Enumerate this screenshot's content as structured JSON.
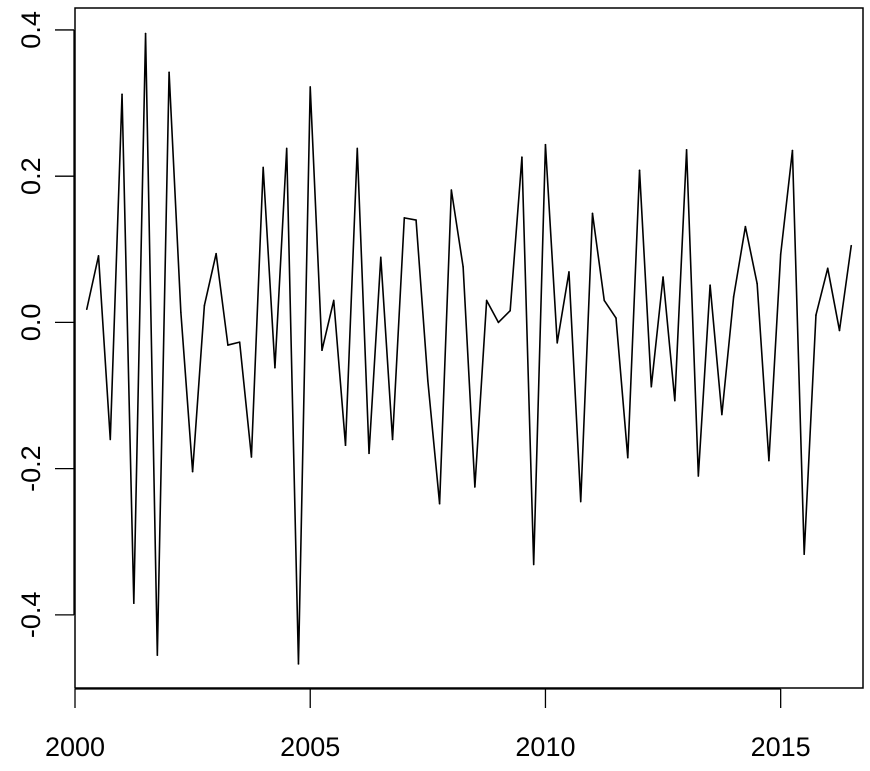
{
  "chart_data": {
    "type": "line",
    "title": "",
    "xlabel": "",
    "ylabel": "",
    "xlim": [
      2000.0,
      2016.75
    ],
    "ylim": [
      -0.5,
      0.43
    ],
    "x_ticks": [
      2000,
      2005,
      2010,
      2015
    ],
    "x_tick_labels": [
      "2000",
      "2005",
      "2010",
      "2015"
    ],
    "y_ticks": [
      -0.4,
      -0.2,
      0.0,
      0.2,
      0.4
    ],
    "y_tick_labels": [
      "-0.4",
      "-0.2",
      "0.0",
      "0.2",
      "0.4"
    ],
    "grid": false,
    "line_color": "#000000",
    "series": [
      {
        "x_start": 2000.25,
        "x_step": 0.25,
        "values": [
          0.018,
          0.091,
          -0.16,
          0.312,
          -0.384,
          0.395,
          -0.455,
          0.342,
          0.014,
          -0.204,
          0.023,
          0.094,
          -0.031,
          -0.027,
          -0.184,
          0.212,
          -0.062,
          0.238,
          -0.467,
          0.322,
          -0.038,
          0.03,
          -0.168,
          0.238,
          -0.179,
          0.089,
          -0.16,
          0.143,
          0.14,
          -0.08,
          -0.248,
          0.181,
          0.076,
          -0.225,
          0.03,
          0.0,
          0.016,
          0.226,
          -0.331,
          0.243,
          -0.028,
          0.069,
          -0.245,
          0.149,
          0.03,
          0.006,
          -0.185,
          0.208,
          -0.088,
          0.062,
          -0.107,
          0.236,
          -0.21,
          0.051,
          -0.126,
          0.035,
          0.131,
          0.053,
          -0.189,
          0.093,
          0.235,
          -0.317,
          0.01,
          0.074,
          -0.011,
          0.105
        ]
      }
    ]
  }
}
